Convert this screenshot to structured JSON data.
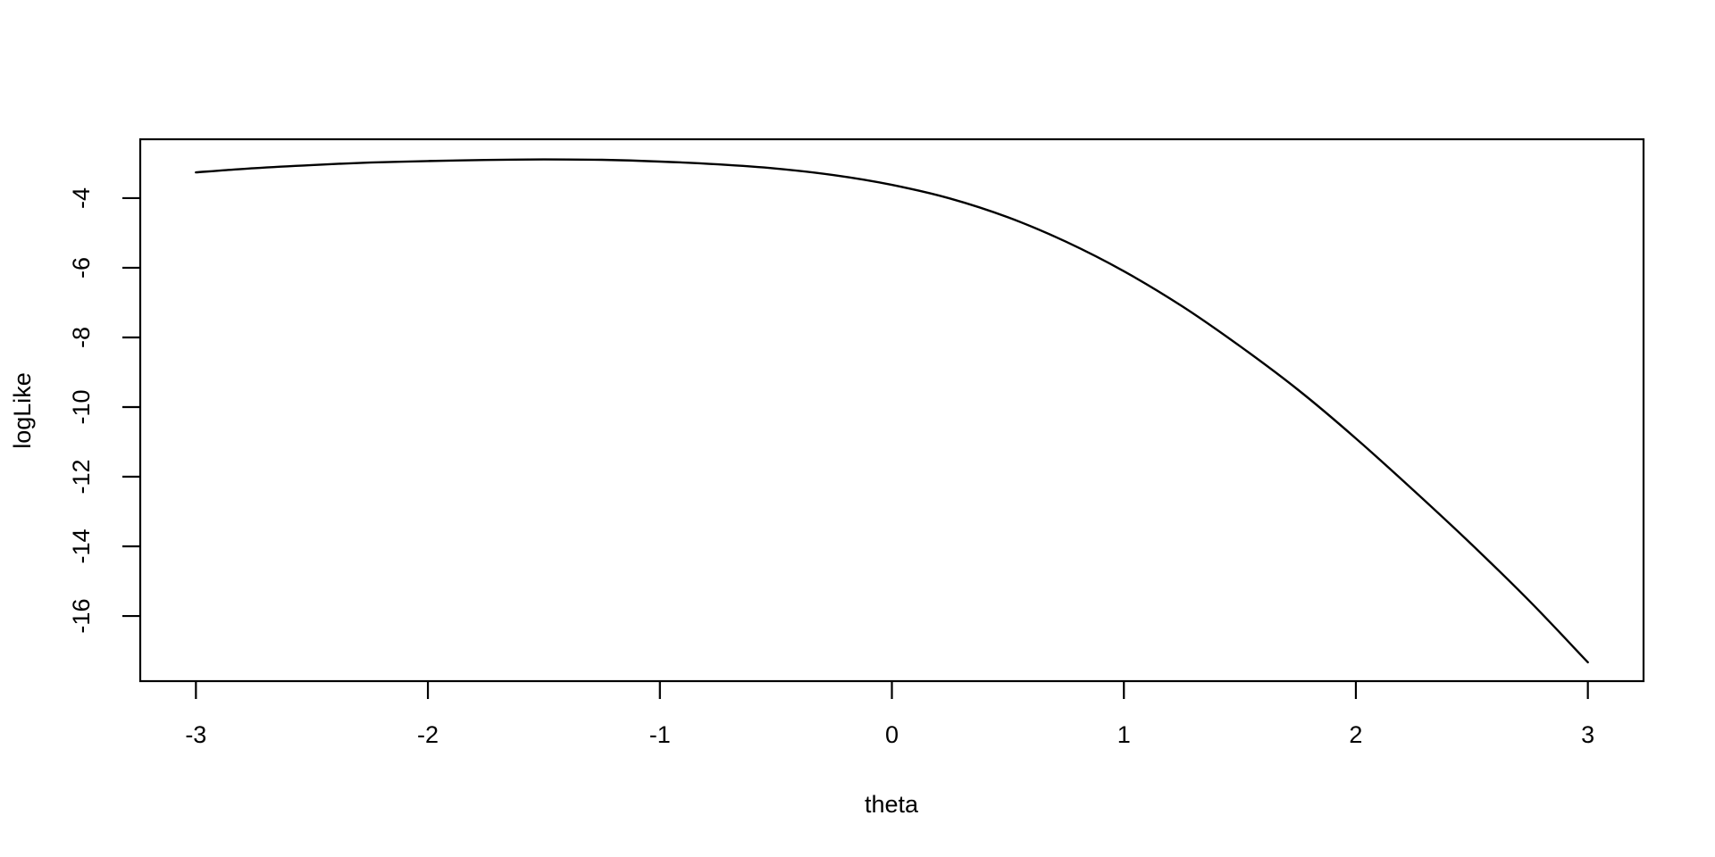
{
  "figure": {
    "background": "#ffffff",
    "foreground": "#000000"
  },
  "chart_data": {
    "type": "line",
    "title": "",
    "xlabel": "theta",
    "ylabel": "logLike",
    "xlim": [
      -3.24,
      3.24
    ],
    "ylim": [
      -17.87,
      -2.31
    ],
    "grid": false,
    "legend": "none",
    "box": true,
    "x_ticks": [
      -3,
      -2,
      -1,
      0,
      1,
      2,
      3
    ],
    "x_tick_labels": [
      "-3",
      "-2",
      "-1",
      "0",
      "1",
      "2",
      "3"
    ],
    "y_ticks": [
      -4,
      -6,
      -8,
      -10,
      -12,
      -14,
      -16
    ],
    "y_tick_labels": [
      "-4",
      "-6",
      "-8",
      "-10",
      "-12",
      "-14",
      "-16"
    ],
    "series": [
      {
        "name": "logLike",
        "color": "#000000",
        "points": [
          [
            -3.0,
            -3.26
          ],
          [
            -2.75,
            -3.14
          ],
          [
            -2.5,
            -3.05
          ],
          [
            -2.25,
            -2.98
          ],
          [
            -2.0,
            -2.935
          ],
          [
            -1.75,
            -2.905
          ],
          [
            -1.5,
            -2.89
          ],
          [
            -1.25,
            -2.9
          ],
          [
            -1.0,
            -2.95
          ],
          [
            -0.75,
            -3.03
          ],
          [
            -0.5,
            -3.15
          ],
          [
            -0.25,
            -3.34
          ],
          [
            0.0,
            -3.62
          ],
          [
            0.25,
            -4.01
          ],
          [
            0.5,
            -4.55
          ],
          [
            0.75,
            -5.25
          ],
          [
            1.0,
            -6.1
          ],
          [
            1.25,
            -7.1
          ],
          [
            1.5,
            -8.25
          ],
          [
            1.75,
            -9.5
          ],
          [
            2.0,
            -10.9
          ],
          [
            2.25,
            -12.4
          ],
          [
            2.5,
            -13.95
          ],
          [
            2.75,
            -15.58
          ],
          [
            3.0,
            -17.33
          ]
        ]
      }
    ]
  }
}
